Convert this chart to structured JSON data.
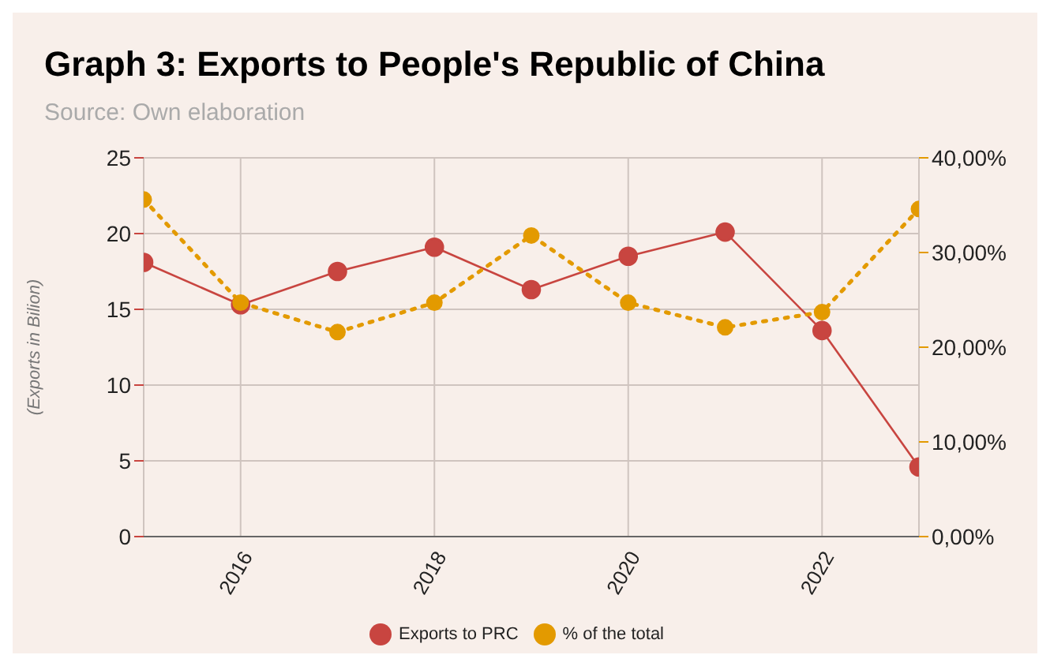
{
  "chart_data": {
    "type": "line",
    "title": "Graph 3: Exports to People's Republic of China",
    "subtitle": "Source: Own elaboration",
    "ylabel": "(Exports in Bilion)",
    "x": [
      2015,
      2016,
      2017,
      2018,
      2019,
      2020,
      2021,
      2022,
      2023
    ],
    "xlim": [
      2015,
      2023
    ],
    "xticks": [
      2016,
      2018,
      2020,
      2022
    ],
    "ylim": [
      0,
      25
    ],
    "yticks": [
      0,
      5,
      10,
      15,
      20,
      25
    ],
    "y2lim": [
      0,
      40
    ],
    "y2ticks": [
      {
        "value": 0,
        "label": "0,00%"
      },
      {
        "value": 10,
        "label": "10,00%"
      },
      {
        "value": 20,
        "label": "20,00%"
      },
      {
        "value": 30,
        "label": "30,00%"
      },
      {
        "value": 40,
        "label": "40,00%"
      }
    ],
    "series": [
      {
        "name": "Exports to PRC",
        "color": "#c84540",
        "values": [
          18.1,
          15.3,
          17.5,
          19.1,
          16.3,
          18.5,
          20.1,
          13.6,
          4.6
        ],
        "line_style": "solid"
      },
      {
        "name": "% of the total",
        "color": "#e39a00",
        "axis": "y2",
        "values": [
          35.6,
          24.7,
          21.6,
          24.7,
          31.8,
          24.7,
          22.1,
          23.7,
          34.6
        ],
        "line_style": "dotted"
      }
    ],
    "grid": true,
    "legend": "bottom",
    "marker": "circle"
  }
}
